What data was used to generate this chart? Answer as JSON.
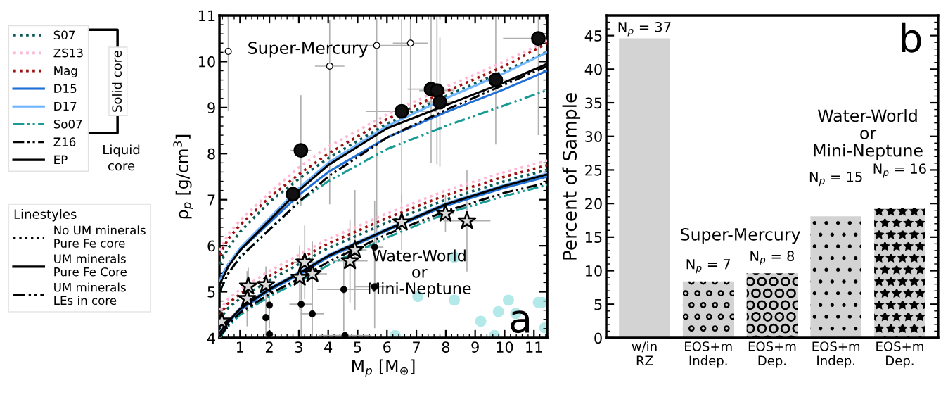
{
  "chart_data": [
    {
      "type": "line",
      "xlabel": "M$_{p}$ [M$_{⊕}$]",
      "ylabel": "ρ$_{p}$ [g/cm$^{3}$]",
      "xlim": [
        0.3,
        11.45
      ],
      "ylim": [
        4,
        11
      ],
      "xticks": [
        1,
        2,
        3,
        4,
        5,
        6,
        7,
        8,
        9,
        10,
        11
      ],
      "yticks": [
        4,
        5,
        6,
        7,
        8,
        9,
        10,
        11
      ],
      "legend": "left",
      "x": [
        0.3,
        0.6,
        1,
        2,
        3,
        4,
        6,
        8,
        10,
        11.45
      ],
      "series": [
        {
          "name": "S07",
          "color": "#0b5a55",
          "line_style": "dotted",
          "values": [
            5.6,
            5.95,
            6.3,
            6.95,
            7.45,
            7.9,
            8.65,
            9.25,
            9.8,
            10.2
          ]
        },
        {
          "name": "ZS13",
          "color": "#ffb6d5",
          "line_style": "dotted",
          "values": [
            5.9,
            6.25,
            6.55,
            7.15,
            7.7,
            8.15,
            8.85,
            9.45,
            10.0,
            10.45
          ]
        },
        {
          "name": "Mag",
          "color": "#a01010",
          "line_style": "dotted",
          "values": [
            5.8,
            6.15,
            6.45,
            7.05,
            7.55,
            8.0,
            8.75,
            9.35,
            9.9,
            10.4
          ]
        },
        {
          "name": "D15",
          "color": "#1f6fd6",
          "line_style": "solid",
          "values": [
            5.25,
            5.6,
            5.9,
            6.5,
            7.1,
            7.6,
            8.35,
            8.9,
            9.4,
            9.8
          ]
        },
        {
          "name": "D17",
          "color": "#6fb5ff",
          "line_style": "solid",
          "values": [
            5.2,
            5.6,
            5.95,
            6.6,
            7.25,
            7.8,
            8.6,
            9.2,
            9.75,
            10.2
          ]
        },
        {
          "name": "So07",
          "color": "#1a9a95",
          "line_style": "dashdot",
          "values": [
            5.0,
            5.4,
            5.75,
            6.35,
            6.95,
            7.4,
            8.1,
            8.6,
            9.05,
            9.38
          ]
        },
        {
          "name": "Z16",
          "color": "#000000",
          "line_style": "dashdot",
          "values": [
            5.0,
            5.4,
            5.75,
            6.35,
            6.95,
            7.5,
            8.35,
            8.95,
            9.5,
            9.9
          ]
        },
        {
          "name": "EP",
          "color": "#000000",
          "line_style": "solid",
          "values": [
            5.15,
            5.55,
            5.9,
            6.55,
            7.2,
            7.75,
            8.55,
            9.05,
            9.55,
            9.95
          ]
        },
        {
          "color": "#0b5a55",
          "line_style": "dotted",
          "values": [
            4.4,
            4.65,
            4.85,
            5.25,
            5.6,
            5.95,
            6.5,
            7.0,
            7.4,
            7.65
          ]
        },
        {
          "color": "#ffb6d5",
          "line_style": "dotted",
          "values": [
            4.6,
            4.85,
            5.05,
            5.45,
            5.8,
            6.15,
            6.7,
            7.2,
            7.6,
            7.85
          ]
        },
        {
          "color": "#a01010",
          "line_style": "dotted",
          "values": [
            4.5,
            4.75,
            4.95,
            5.35,
            5.7,
            6.05,
            6.6,
            7.1,
            7.5,
            7.75
          ]
        },
        {
          "color": "#1f6fd6",
          "line_style": "solid",
          "values": [
            4.08,
            4.33,
            4.6,
            5.03,
            5.37,
            5.75,
            6.33,
            6.87,
            7.26,
            7.5
          ]
        },
        {
          "color": "#6fb5ff",
          "line_style": "solid",
          "values": [
            4.12,
            4.37,
            4.65,
            5.08,
            5.42,
            5.8,
            6.37,
            6.92,
            7.32,
            7.57
          ]
        },
        {
          "color": "#1a9a95",
          "line_style": "dashdot",
          "values": [
            4.0,
            4.25,
            4.5,
            4.9,
            5.22,
            5.58,
            6.18,
            6.7,
            7.08,
            7.32
          ]
        },
        {
          "color": "#000000",
          "line_style": "dashdot",
          "values": [
            4.02,
            4.28,
            4.55,
            4.95,
            5.28,
            5.65,
            6.25,
            6.75,
            7.15,
            7.37
          ]
        },
        {
          "color": "#000000",
          "line_style": "solid",
          "values": [
            4.1,
            4.35,
            4.63,
            5.06,
            5.4,
            5.78,
            6.35,
            6.9,
            7.3,
            7.55
          ]
        },
        {
          "type": "scatter",
          "marker": "circle",
          "color": "#111111",
          "x": [
            2.8,
            3.07,
            6.5,
            7.5,
            7.7,
            7.8,
            9.7,
            11.15
          ],
          "values": [
            7.12,
            8.07,
            8.92,
            9.4,
            9.37,
            9.12,
            9.6,
            10.5
          ],
          "errors": [
            0.35,
            1.2,
            2.0,
            1.6,
            1.6,
            1.4,
            1.4,
            [
              8.4,
              11.0
            ]
          ],
          "xerrors": [
            0.2,
            0.35,
            1.2,
            0.8,
            0.6,
            0.5,
            0.6,
            1.2
          ]
        },
        {
          "type": "scatter",
          "marker": "circle",
          "color": "#ffffff",
          "x": [
            0.6,
            4.05,
            5.65,
            6.8
          ],
          "values": [
            10.22,
            9.9,
            10.35,
            10.4
          ],
          "errors": [
            [
              8.92,
              11.0
            ],
            [
              6.9,
              10.9
            ],
            [
              6.05,
              10.95
            ],
            [
              8.9,
              10.9
            ]
          ],
          "xerrors": [
            null,
            0.5,
            1.2,
            0.6
          ]
        },
        {
          "type": "scatter",
          "marker": "star",
          "color": "#d9d9d9",
          "x": [
            0.38,
            1.24,
            1.28,
            1.88,
            3.03,
            3.2,
            3.46,
            4.74,
            4.91,
            6.5,
            7.99,
            8.72
          ],
          "values": [
            4.36,
            4.85,
            5.12,
            5.15,
            5.31,
            5.64,
            5.39,
            5.67,
            5.91,
            6.51,
            6.7,
            6.54
          ],
          "errors": [
            0.3,
            0.6,
            0.4,
            0.4,
            0.7,
            0.8,
            0.7,
            0.9,
            1.3,
            0.6,
            0.4,
            1.1
          ],
          "xerrors": [
            0.1,
            0.2,
            0.2,
            0.2,
            0.4,
            0.4,
            0.5,
            0.6,
            0.4,
            0.3,
            0.3,
            0.8
          ]
        },
        {
          "type": "scatter",
          "marker": "circle",
          "color": "#000000",
          "x": [
            2.0,
            1.88,
            2.0,
            3.08,
            3.46,
            4.53,
            4.57,
            5.58,
            5.58
          ],
          "values": [
            4.71,
            4.44,
            4.08,
            4.73,
            4.52,
            5.05,
            4.05,
            5.97,
            5.11
          ],
          "errors": [
            0.5,
            0.4,
            null,
            0.7,
            0.5,
            0.9,
            null,
            1.0,
            0.9
          ],
          "xerrors": [
            0.1,
            0.1,
            0.2,
            0.4,
            0.4,
            0.9,
            0.9,
            0.3,
            0.7
          ]
        },
        {
          "type": "scatter",
          "marker": "circle",
          "color": "#b4e9ea",
          "x": [
            8.29,
            7.05,
            8.29,
            10.13,
            9.79,
            10.38,
            9.19,
            11.15,
            11.28,
            11.37,
            6.28,
            9.66
          ],
          "values": [
            5.75,
            4.9,
            4.82,
            4.82,
            4.57,
            4.53,
            4.36,
            4.77,
            4.77,
            4.22,
            4.05,
            4.05
          ]
        }
      ],
      "annotations": [
        "Super-Mercury",
        "Water-World\nor\nMini-Neptune",
        "a",
        "Solid core",
        "Liquid\ncore",
        "Linestyles",
        "No UM minerals\nPure Fe core",
        "UM minerals\nPure Fe Core",
        "UM minerals\nLEs in core"
      ]
    },
    {
      "type": "bar",
      "categories": [
        "w/in\nRZ",
        "EOS+m\nIndep.",
        "EOS+m\nDep.",
        "EOS+m\nIndep.",
        "EOS+m\nDep."
      ],
      "values": [
        44.6,
        8.4,
        9.6,
        18.1,
        19.3
      ],
      "color": "#d3d3d3",
      "ylabel": "Percent of Sample",
      "ylim": [
        0,
        48
      ],
      "yticks": [
        0,
        5,
        10,
        15,
        20,
        25,
        30,
        35,
        40,
        45
      ],
      "annotations": [
        "Super-Mercury",
        "Water-World\nor\nMini-Neptune",
        "b",
        "N$_{p}$ = 37",
        "N$_{p}$ = 7",
        "N$_{p}$ = 8",
        "N$_{p}$ = 15",
        "N$_{p}$ = 16"
      ]
    }
  ]
}
